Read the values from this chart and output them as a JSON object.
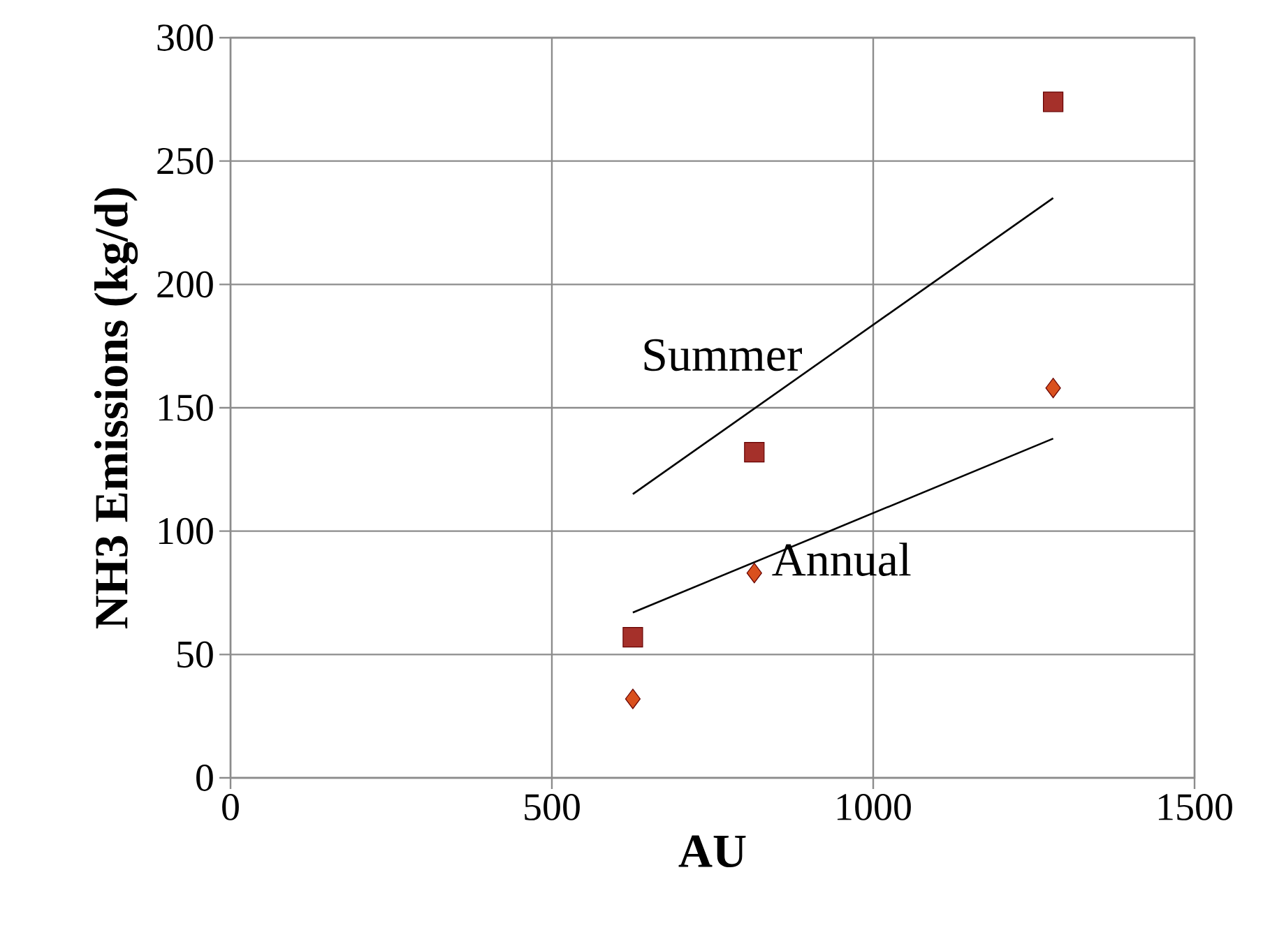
{
  "chart_data": {
    "type": "scatter",
    "xlabel": "AU",
    "ylabel": "NH3 Emissions (kg/d)",
    "xlim": [
      0,
      1500
    ],
    "xticks": [
      0,
      500,
      1000,
      1500
    ],
    "ylim": [
      0,
      300
    ],
    "yticks": [
      0,
      50,
      100,
      150,
      200,
      250,
      300
    ],
    "grid": true,
    "series": [
      {
        "marker": "square",
        "color": "#a5302a",
        "x": [
          626,
          815,
          1280
        ],
        "values": [
          57,
          132,
          274
        ]
      },
      {
        "marker": "diamond",
        "color": "#d9501e",
        "x": [
          626,
          815,
          1280
        ],
        "values": [
          32,
          83,
          158
        ]
      },
      {
        "type": "line",
        "name": "Summer",
        "marker": "none",
        "color": "#000000",
        "x": [
          626,
          1280
        ],
        "values": [
          115,
          235
        ]
      },
      {
        "type": "line",
        "name": "Annual",
        "marker": "none",
        "color": "#000000",
        "x": [
          626,
          1280
        ],
        "values": [
          67,
          137.5
        ]
      }
    ]
  }
}
